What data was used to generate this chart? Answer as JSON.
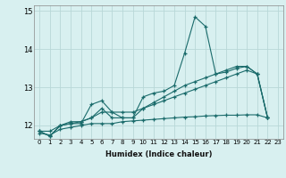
{
  "xlabel": "Humidex (Indice chaleur)",
  "xlim": [
    -0.5,
    23.5
  ],
  "ylim": [
    11.65,
    15.15
  ],
  "yticks": [
    12,
    13,
    14,
    15
  ],
  "xticks": [
    0,
    1,
    2,
    3,
    4,
    5,
    6,
    7,
    8,
    9,
    10,
    11,
    12,
    13,
    14,
    15,
    16,
    17,
    18,
    19,
    20,
    21,
    22,
    23
  ],
  "background_color": "#d8f0f0",
  "grid_color": "#b8d8d8",
  "line_color": "#1a6b6b",
  "series": [
    [
      11.85,
      11.72,
      12.0,
      12.05,
      12.05,
      12.55,
      12.65,
      12.35,
      12.2,
      12.2,
      12.75,
      12.85,
      12.9,
      13.05,
      13.9,
      14.85,
      14.6,
      13.35,
      13.45,
      13.55,
      13.55,
      13.35,
      12.2,
      null
    ],
    [
      11.85,
      11.72,
      12.0,
      12.1,
      12.1,
      12.2,
      12.45,
      12.2,
      12.2,
      12.2,
      12.45,
      12.6,
      12.75,
      12.9,
      13.05,
      13.15,
      13.25,
      13.35,
      13.4,
      13.5,
      13.55,
      13.35,
      12.2,
      null
    ],
    [
      11.85,
      11.85,
      12.0,
      12.05,
      12.1,
      12.2,
      12.35,
      12.35,
      12.35,
      12.35,
      12.45,
      12.55,
      12.65,
      12.75,
      12.85,
      12.95,
      13.05,
      13.15,
      13.25,
      13.35,
      13.45,
      13.35,
      12.2,
      null
    ],
    [
      11.8,
      11.75,
      11.9,
      11.95,
      12.0,
      12.05,
      12.05,
      12.05,
      12.1,
      12.12,
      12.14,
      12.16,
      12.18,
      12.2,
      12.22,
      12.23,
      12.25,
      12.26,
      12.27,
      12.27,
      12.28,
      12.28,
      12.2,
      null
    ]
  ]
}
